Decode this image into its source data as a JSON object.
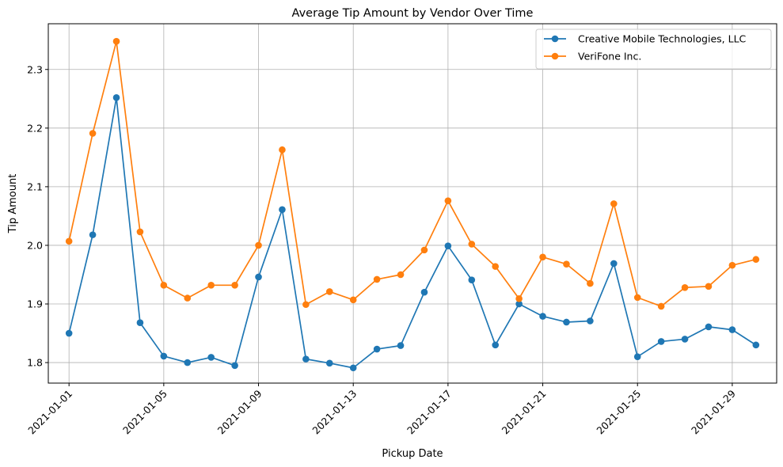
{
  "chart_data": {
    "type": "line",
    "title": "Average Tip Amount by Vendor Over Time",
    "xlabel": "Pickup Date",
    "ylabel": "Tip Amount",
    "x": [
      "2021-01-01",
      "2021-01-02",
      "2021-01-03",
      "2021-01-04",
      "2021-01-05",
      "2021-01-06",
      "2021-01-07",
      "2021-01-08",
      "2021-01-09",
      "2021-01-10",
      "2021-01-11",
      "2021-01-12",
      "2021-01-13",
      "2021-01-14",
      "2021-01-15",
      "2021-01-16",
      "2021-01-17",
      "2021-01-18",
      "2021-01-19",
      "2021-01-20",
      "2021-01-21",
      "2021-01-22",
      "2021-01-23",
      "2021-01-24",
      "2021-01-25",
      "2021-01-26",
      "2021-01-27",
      "2021-01-28",
      "2021-01-29",
      "2021-01-30"
    ],
    "xlim": [
      "2020-12-31T03:00",
      "2021-01-30T21:00"
    ],
    "xticks": [
      "2021-01-01",
      "2021-01-05",
      "2021-01-09",
      "2021-01-13",
      "2021-01-17",
      "2021-01-21",
      "2021-01-25",
      "2021-01-29"
    ],
    "ylim": [
      1.765,
      2.378
    ],
    "yticks": [
      1.8,
      1.9,
      2.0,
      2.1,
      2.2,
      2.3
    ],
    "ytick_labels": [
      "1.8",
      "1.9",
      "2.0",
      "2.1",
      "2.2",
      "2.3"
    ],
    "grid": true,
    "legend_position": "top-right",
    "series": [
      {
        "name": "Creative Mobile Technologies, LLC",
        "color": "#1f77b4",
        "values": [
          1.85,
          2.018,
          2.252,
          1.868,
          1.811,
          1.8,
          1.809,
          1.795,
          1.946,
          2.061,
          1.806,
          1.799,
          1.791,
          1.823,
          1.829,
          1.92,
          1.999,
          1.941,
          1.83,
          1.9,
          1.879,
          1.869,
          1.871,
          1.969,
          1.81,
          1.836,
          1.84,
          1.861,
          1.856,
          1.83
        ]
      },
      {
        "name": "VeriFone Inc.",
        "color": "#ff7f0e",
        "values": [
          2.007,
          2.191,
          2.348,
          2.023,
          1.932,
          1.91,
          1.932,
          1.932,
          2.0,
          2.163,
          1.899,
          1.921,
          1.907,
          1.942,
          1.95,
          1.992,
          2.076,
          2.002,
          1.964,
          1.909,
          1.98,
          1.968,
          1.935,
          2.071,
          1.911,
          1.896,
          1.928,
          1.93,
          1.966,
          1.976
        ]
      }
    ]
  }
}
